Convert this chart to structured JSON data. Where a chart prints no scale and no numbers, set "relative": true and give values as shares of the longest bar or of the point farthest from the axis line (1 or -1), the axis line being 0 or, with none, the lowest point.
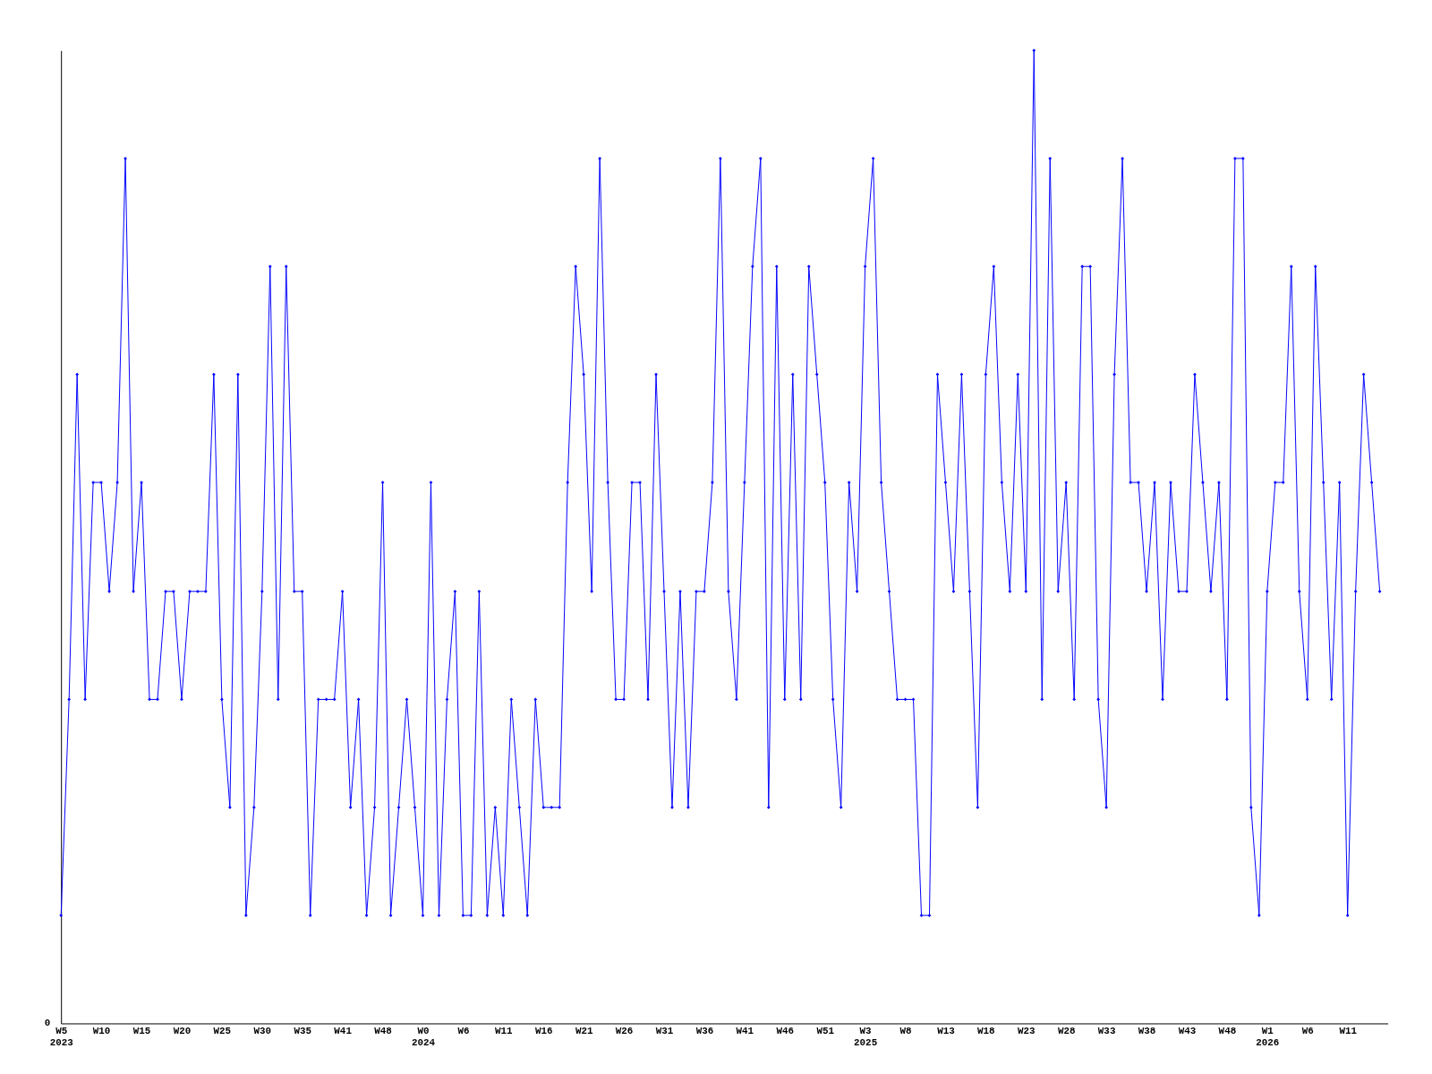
{
  "chart_data": {
    "type": "line",
    "relative": true,
    "color": "#0000ff",
    "marker": "diamond",
    "line_style": "solid",
    "grid": false,
    "tick_labels": "x",
    "annotations": [
      "0"
    ],
    "categories": [
      "W5\n2023",
      null,
      null,
      null,
      null,
      "W10",
      null,
      null,
      null,
      null,
      "W15",
      null,
      null,
      null,
      null,
      "W20",
      null,
      null,
      null,
      null,
      "W25",
      null,
      null,
      null,
      null,
      "W30",
      null,
      null,
      null,
      null,
      "W35",
      null,
      null,
      null,
      null,
      "W41",
      null,
      null,
      null,
      null,
      "W48",
      null,
      null,
      null,
      null,
      "W0\n2024",
      null,
      null,
      null,
      null,
      "W6",
      null,
      null,
      null,
      null,
      "W11",
      null,
      null,
      null,
      null,
      "W16",
      null,
      null,
      null,
      null,
      "W21",
      null,
      null,
      null,
      null,
      "W26",
      null,
      null,
      null,
      null,
      "W31",
      null,
      null,
      null,
      null,
      "W36",
      null,
      null,
      null,
      null,
      "W41",
      null,
      null,
      null,
      null,
      "W46",
      null,
      null,
      null,
      null,
      "W51",
      null,
      null,
      null,
      null,
      "W3\n2025",
      null,
      null,
      null,
      null,
      "W8",
      null,
      null,
      null,
      null,
      "W13",
      null,
      null,
      null,
      null,
      "W18",
      null,
      null,
      null,
      null,
      "W23",
      null,
      null,
      null,
      null,
      "W28",
      null,
      null,
      null,
      null,
      "W33",
      null,
      null,
      null,
      null,
      "W38",
      null,
      null,
      null,
      null,
      "W43",
      null,
      null,
      null,
      null,
      "W48",
      null,
      null,
      null,
      null,
      "W1\n2026",
      null,
      null,
      null,
      null,
      "W6",
      null,
      null,
      null,
      null,
      "W11",
      null,
      null,
      null,
      null
    ],
    "values": [
      0.111,
      0.333,
      0.667,
      0.333,
      0.556,
      0.556,
      0.444,
      0.556,
      0.889,
      0.444,
      0.556,
      0.333,
      0.333,
      0.444,
      0.444,
      0.333,
      0.444,
      0.444,
      0.444,
      0.667,
      0.333,
      0.222,
      0.667,
      0.111,
      0.222,
      0.444,
      0.778,
      0.333,
      0.778,
      0.444,
      0.444,
      0.111,
      0.333,
      0.333,
      0.333,
      0.444,
      0.222,
      0.333,
      0.111,
      0.222,
      0.556,
      0.111,
      0.222,
      0.333,
      0.222,
      0.111,
      0.556,
      0.111,
      0.333,
      0.444,
      0.111,
      0.111,
      0.444,
      0.111,
      0.222,
      0.111,
      0.333,
      0.222,
      0.111,
      0.333,
      0.222,
      0.222,
      0.222,
      0.556,
      0.778,
      0.667,
      0.444,
      0.889,
      0.556,
      0.333,
      0.333,
      0.556,
      0.556,
      0.333,
      0.667,
      0.444,
      0.222,
      0.444,
      0.222,
      0.444,
      0.444,
      0.556,
      0.889,
      0.444,
      0.333,
      0.556,
      0.778,
      0.889,
      0.222,
      0.778,
      0.333,
      0.667,
      0.333,
      0.778,
      0.667,
      0.556,
      0.333,
      0.222,
      0.556,
      0.444,
      0.778,
      0.889,
      0.556,
      0.444,
      0.333,
      0.333,
      0.333,
      0.111,
      0.111,
      0.667,
      0.556,
      0.444,
      0.667,
      0.444,
      0.222,
      0.667,
      0.778,
      0.556,
      0.444,
      0.667,
      0.444,
      1,
      0.333,
      0.889,
      0.444,
      0.556,
      0.333,
      0.778,
      0.778,
      0.333,
      0.222,
      0.667,
      0.889,
      0.556,
      0.556,
      0.444,
      0.556,
      0.333,
      0.556,
      0.444,
      0.444,
      0.667,
      0.556,
      0.444,
      0.556,
      0.333,
      0.889,
      0.889,
      0.222,
      0.111,
      0.444,
      0.556,
      0.556,
      0.778,
      0.444,
      0.333,
      0.778,
      0.556,
      0.333,
      0.556,
      0.111,
      0.444,
      0.667,
      0.556,
      0.444
    ]
  }
}
